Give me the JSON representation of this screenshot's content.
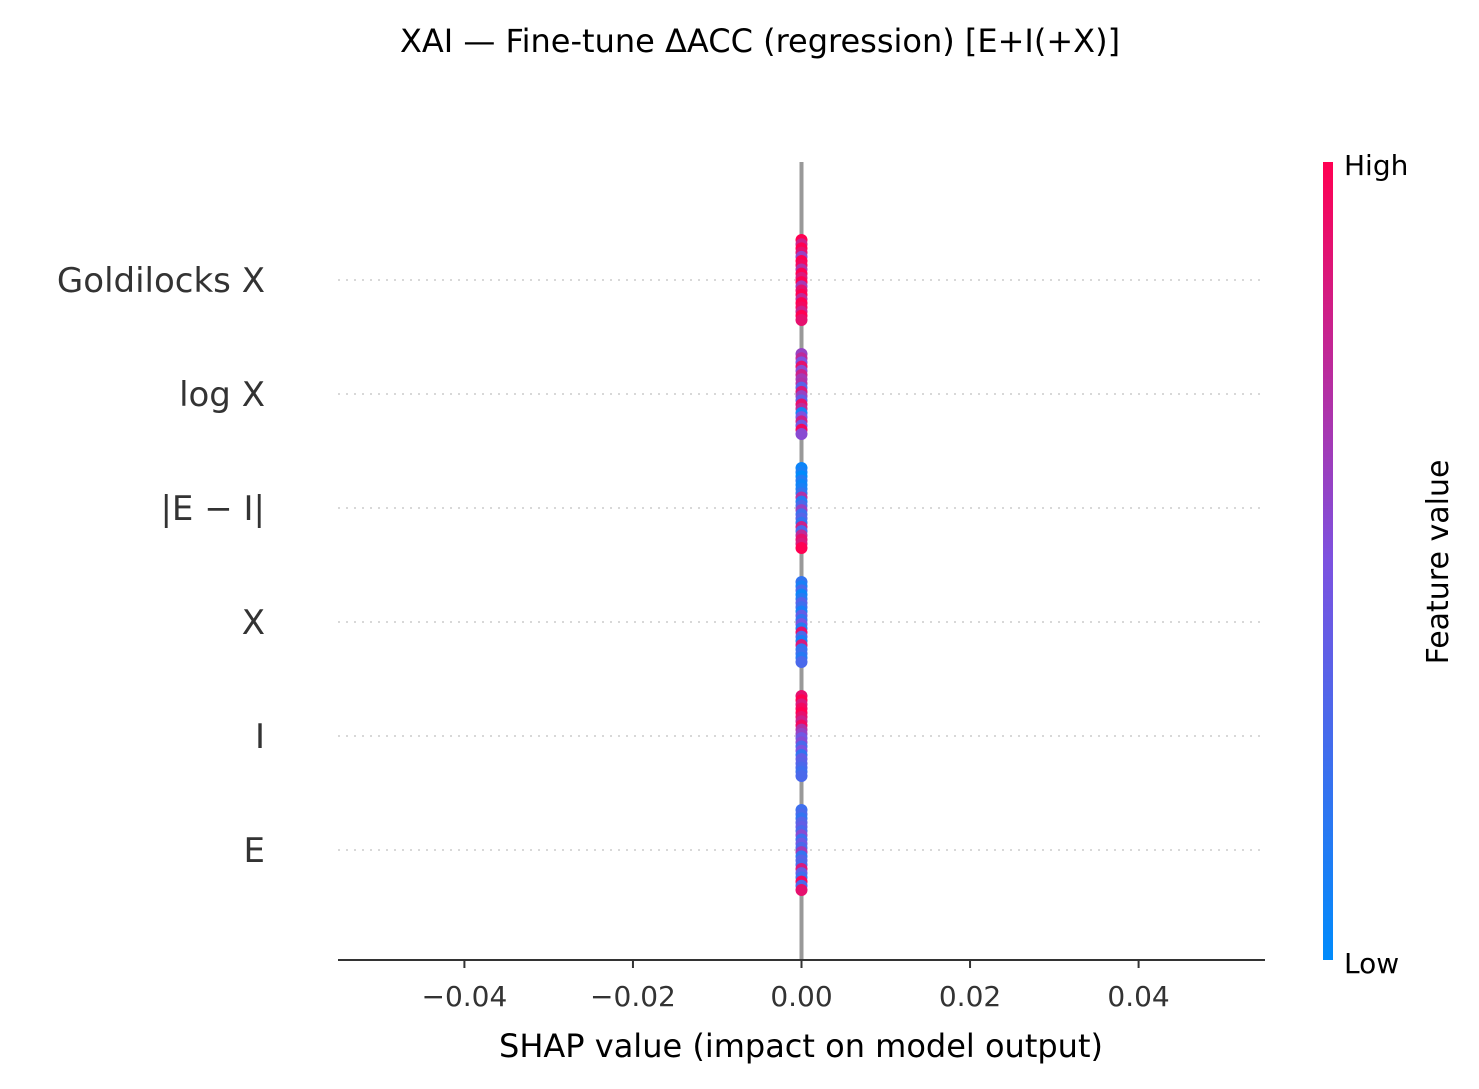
{
  "chart_data": {
    "type": "scatter",
    "subtype": "shap-beeswarm",
    "title": "XAI — Fine-tune ΔACC (regression) [E+I(+X)]",
    "xlabel": "SHAP value (impact on model output)",
    "xlim": [
      -0.055,
      0.055
    ],
    "xticks": [
      -0.04,
      -0.02,
      0.0,
      0.02,
      0.04
    ],
    "xtick_labels": [
      "−0.04",
      "−0.02",
      "0.00",
      "0.02",
      "0.04"
    ],
    "features": [
      "Goldilocks X",
      "log X",
      "|E − I|",
      "X",
      "I",
      "E"
    ],
    "shap_value_all_points": 0.0,
    "feature_points": [
      [
        1,
        0.8,
        1,
        0.9,
        0.6,
        1,
        0.95,
        0.7,
        1,
        0.85,
        1,
        0.65,
        0.9,
        1,
        0.75,
        1,
        0.95,
        0.8,
        1,
        0.9
      ],
      [
        0.6,
        0.75,
        0.5,
        0.9,
        0.55,
        0.8,
        0.65,
        0.7,
        0.35,
        0.85,
        0.6,
        0.4,
        0.9,
        0.75,
        0.1,
        0.5,
        0.8,
        0.45,
        0.95,
        0.55
      ],
      [
        0.05,
        0.1,
        0.0,
        0.15,
        0.05,
        0.1,
        0.2,
        0.7,
        0.15,
        0.3,
        0.6,
        0.25,
        0.35,
        0.2,
        0.8,
        0.3,
        0.75,
        0.9,
        0.85,
        1
      ],
      [
        0.2,
        0.1,
        0.3,
        0.05,
        0.15,
        0.35,
        0.25,
        0.1,
        0.4,
        0.2,
        0.5,
        0.15,
        0.9,
        0.3,
        0.1,
        0.85,
        0.2,
        0.25,
        0.15,
        0.3
      ],
      [
        0.9,
        1,
        0.85,
        0.95,
        1,
        0.9,
        0.8,
        0.95,
        0.7,
        0.6,
        0.45,
        0.55,
        0.3,
        0.5,
        0.2,
        0.4,
        0.35,
        0.3,
        0.25,
        0.3
      ],
      [
        0.25,
        0.3,
        0.2,
        0.35,
        0.4,
        0.3,
        0.55,
        0.25,
        0.45,
        0.3,
        0.65,
        0.2,
        0.35,
        0.3,
        0.85,
        0.4,
        0.25,
        0.95,
        0.3,
        0.9
      ]
    ],
    "colorbar": {
      "label": "Feature value",
      "high_label": "High",
      "low_label": "Low",
      "low_color": "#008bfb",
      "mid_color": "#7c52e0",
      "high_color": "#ff0052"
    },
    "zero_line_color": "#999999",
    "grid_color": "#cccccc"
  }
}
